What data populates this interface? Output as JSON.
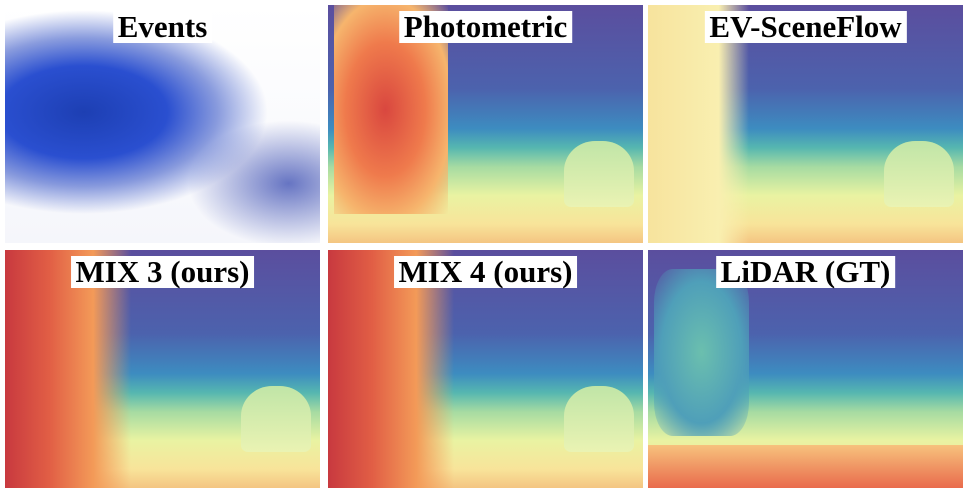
{
  "panels": [
    {
      "label": "Events"
    },
    {
      "label": "Photometric"
    },
    {
      "label": "EV-SceneFlow"
    },
    {
      "label": "MIX 3 (ours)"
    },
    {
      "label": "MIX 4 (ours)"
    },
    {
      "label": "LiDAR (GT)"
    }
  ]
}
